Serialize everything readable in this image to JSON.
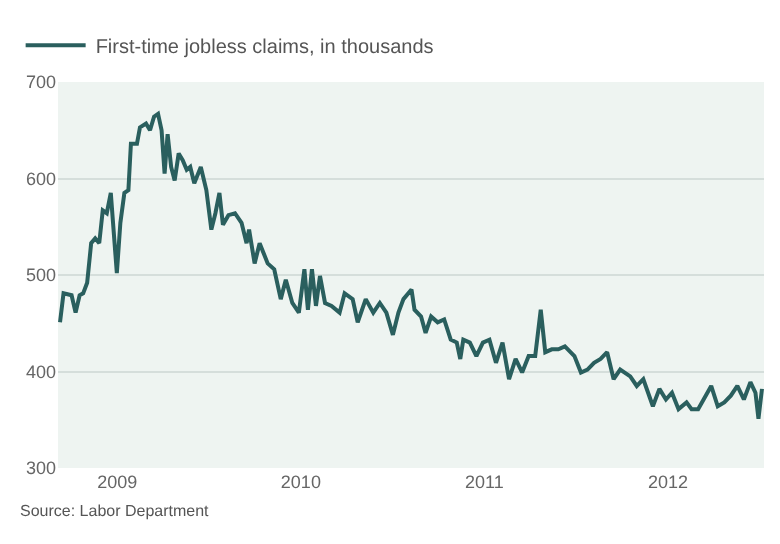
{
  "chart_data": {
    "type": "line",
    "annotations": [
      "Source: Labor Department"
    ],
    "legend": "top left",
    "grid": "y",
    "marker": "none",
    "line_style": "solid",
    "xlim": [
      "2008-09-05",
      "2012-07-10"
    ],
    "xticks": [
      {
        "value": "2009-01-01",
        "label": "2009"
      },
      {
        "value": "2010-01-01",
        "label": "2010"
      },
      {
        "value": "2011-01-01",
        "label": "2011"
      },
      {
        "value": "2012-01-01",
        "label": "2012"
      }
    ],
    "ylim": [
      300,
      700
    ],
    "yticks": [
      300,
      400,
      500,
      600,
      700
    ],
    "x": [
      "2008-09-09",
      "2008-09-16",
      "2008-10-02",
      "2008-10-10",
      "2008-10-18",
      "2008-10-25",
      "2008-11-02",
      "2008-11-10",
      "2008-11-18",
      "2008-11-26",
      "2008-12-03",
      "2008-12-11",
      "2008-12-19",
      "2008-12-23",
      "2008-12-31",
      "2009-01-07",
      "2009-01-15",
      "2009-01-23",
      "2009-01-28",
      "2009-02-09",
      "2009-02-15",
      "2009-02-27",
      "2009-03-07",
      "2009-03-15",
      "2009-03-23",
      "2009-03-30",
      "2009-04-05",
      "2009-04-11",
      "2009-04-18",
      "2009-04-25",
      "2009-05-03",
      "2009-05-11",
      "2009-05-19",
      "2009-05-26",
      "2009-06-03",
      "2009-06-16",
      "2009-06-27",
      "2009-07-07",
      "2009-07-15",
      "2009-07-23",
      "2009-07-30",
      "2009-08-10",
      "2009-08-23",
      "2009-09-05",
      "2009-09-15",
      "2009-09-20",
      "2009-10-01",
      "2009-10-11",
      "2009-10-27",
      "2009-11-09",
      "2009-11-22",
      "2009-12-02",
      "2009-12-15",
      "2009-12-28",
      "2010-01-08",
      "2010-01-15",
      "2010-01-23",
      "2010-01-31",
      "2010-02-08",
      "2010-02-18",
      "2010-03-03",
      "2010-03-19",
      "2010-03-29",
      "2010-04-14",
      "2010-04-24",
      "2010-05-10",
      "2010-05-25",
      "2010-06-07",
      "2010-06-20",
      "2010-07-03",
      "2010-07-14",
      "2010-07-24",
      "2010-08-09",
      "2010-08-15",
      "2010-08-28",
      "2010-09-06",
      "2010-09-17",
      "2010-09-30",
      "2010-10-13",
      "2010-10-26",
      "2010-11-07",
      "2010-11-14",
      "2010-11-20",
      "2010-12-03",
      "2010-12-16",
      "2010-12-29",
      "2011-01-11",
      "2011-01-24",
      "2011-02-06",
      "2011-02-19",
      "2011-03-04",
      "2011-03-17",
      "2011-03-30",
      "2011-04-12",
      "2011-04-23",
      "2011-05-02",
      "2011-05-15",
      "2011-05-28",
      "2011-06-10",
      "2011-06-29",
      "2011-07-12",
      "2011-07-25",
      "2011-08-07",
      "2011-08-20",
      "2011-09-02",
      "2011-09-15",
      "2011-09-28",
      "2011-10-18",
      "2011-10-31",
      "2011-11-13",
      "2011-12-02",
      "2011-12-15",
      "2011-12-28",
      "2012-01-09",
      "2012-01-22",
      "2012-02-07",
      "2012-02-17",
      "2012-03-01",
      "2012-03-27",
      "2012-04-09",
      "2012-04-22",
      "2012-05-05",
      "2012-05-18",
      "2012-05-31",
      "2012-06-13",
      "2012-06-23",
      "2012-06-29",
      "2012-07-06"
    ],
    "series": [
      {
        "name": "First-time jobless claims, in thousands",
        "color": "#2a5f5e",
        "values": [
          451,
          481,
          479,
          461,
          479,
          481,
          492,
          533,
          538,
          533,
          567,
          564,
          585,
          557,
          502,
          554,
          585,
          588,
          636,
          636,
          653,
          657,
          650,
          664,
          667,
          650,
          605,
          646,
          612,
          598,
          626,
          619,
          609,
          612,
          595,
          612,
          588,
          547,
          564,
          585,
          552,
          562,
          564,
          554,
          533,
          547,
          512,
          533,
          512,
          506,
          475,
          495,
          471,
          461,
          506,
          464,
          506,
          468,
          499,
          471,
          468,
          461,
          481,
          475,
          451,
          475,
          461,
          471,
          461,
          438,
          461,
          475,
          485,
          464,
          457,
          440,
          457,
          451,
          454,
          433,
          430,
          413,
          433,
          430,
          416,
          430,
          433,
          409,
          430,
          392,
          413,
          399,
          416,
          416,
          464,
          420,
          423,
          423,
          426,
          416,
          399,
          402,
          409,
          413,
          420,
          392,
          402,
          395,
          385,
          392,
          364,
          382,
          371,
          378,
          361,
          368,
          361,
          361,
          385,
          364,
          368,
          375,
          385,
          371,
          389,
          378,
          351,
          382
        ]
      }
    ]
  }
}
